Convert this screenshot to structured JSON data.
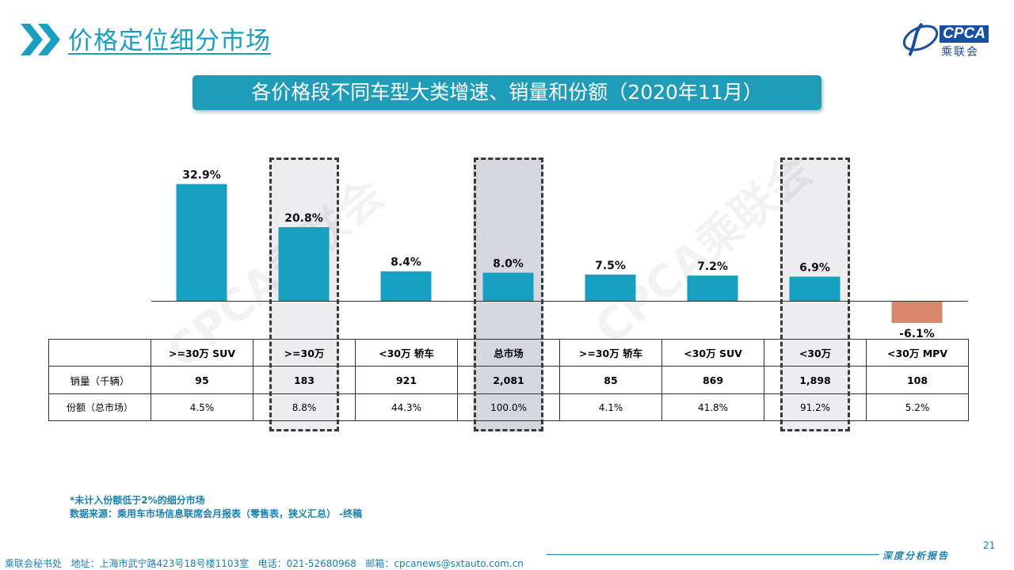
{
  "page_title": "价格定位细分市场",
  "logo": {
    "brand": "CPCA",
    "cn": "乘联会"
  },
  "banner_title": "各价格段不同车型大类增速、销量和份额（2020年11月）",
  "chart_data": {
    "type": "bar",
    "categories": [
      ">=30万 SUV",
      ">=30万",
      "<30万 轿车",
      "总市场",
      ">=30万 轿车",
      "<30万 SUV",
      "<30万",
      "<30万 MPV"
    ],
    "values": [
      32.9,
      20.8,
      8.4,
      8.0,
      7.5,
      7.2,
      6.9,
      -6.1
    ],
    "value_labels": [
      "32.9%",
      "20.8%",
      "8.4%",
      "8.0%",
      "7.5%",
      "7.2%",
      "6.9%",
      "-6.1%"
    ],
    "colors": {
      "positive": "#159fc0",
      "negative": "#d9866a",
      "highlight_bg": "#ededf0",
      "total_bg": "#d6d6de"
    },
    "highlighted": [
      1,
      3,
      6
    ],
    "title": "",
    "ylim": [
      -8,
      36
    ],
    "grid": false
  },
  "table": {
    "headers": [
      ">=30万 SUV",
      ">=30万",
      "<30万 轿车",
      "总市场",
      ">=30万 轿车",
      "<30万 SUV",
      "<30万",
      "<30万 MPV"
    ],
    "rows": [
      {
        "label": "销量（千辆）",
        "values": [
          "95",
          "183",
          "921",
          "2,081",
          "85",
          "869",
          "1,898",
          "108"
        ]
      },
      {
        "label": "份额（总市场）",
        "values": [
          "4.5%",
          "8.8%",
          "44.3%",
          "100.0%",
          "4.1%",
          "41.8%",
          "91.2%",
          "5.2%"
        ]
      }
    ]
  },
  "notes": {
    "line1": "*未计入份额低于2%的细分市场",
    "line2": "数据来源：乘用车市场信息联席会月报表（零售表，狭义汇总） -终稿"
  },
  "watermark": "CPCA乘联会",
  "footer": {
    "text": "乘联会秘书处   地址：上海市武宁路423号18号楼1103室   电话：021-52680968   邮箱：cpcanews@sxtauto.com.cn",
    "page": "21",
    "tag": "深度分析报告"
  }
}
